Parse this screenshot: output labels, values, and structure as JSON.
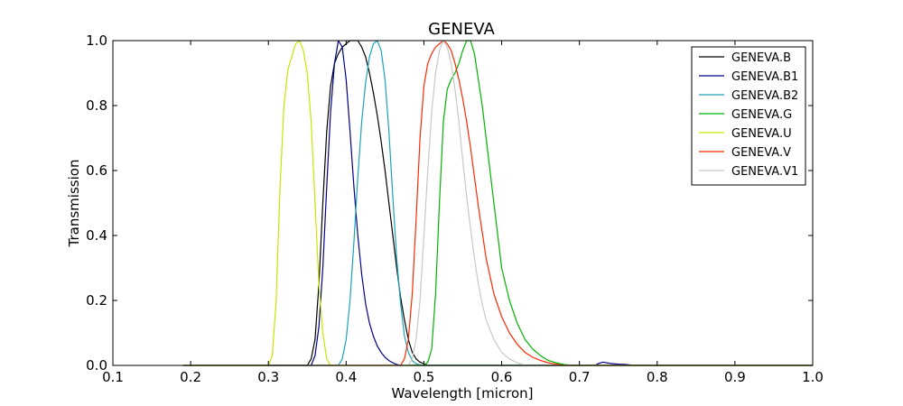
{
  "chart_data": {
    "type": "line",
    "title": "GENEVA",
    "xlabel": "Wavelength [micron]",
    "ylabel": "Transmission",
    "xlim": [
      0.1,
      1.0
    ],
    "ylim": [
      0.0,
      1.0
    ],
    "xticks": [
      0.1,
      0.2,
      0.3,
      0.4,
      0.5,
      0.6,
      0.7,
      0.8,
      0.9,
      1.0
    ],
    "xtick_labels": [
      "0.1",
      "0.2",
      "0.3",
      "0.4",
      "0.5",
      "0.6",
      "0.7",
      "0.8",
      "0.9",
      "1.0"
    ],
    "yticks": [
      0.0,
      0.2,
      0.4,
      0.6,
      0.8,
      1.0
    ],
    "ytick_labels": [
      "0.0",
      "0.2",
      "0.4",
      "0.6",
      "0.8",
      "1.0"
    ],
    "grid": false,
    "legend_position": "top-right",
    "series": [
      {
        "name": "GENEVA.B",
        "color": "#000000",
        "x": [
          0.19,
          0.35,
          0.355,
          0.36,
          0.365,
          0.37,
          0.375,
          0.38,
          0.385,
          0.39,
          0.395,
          0.4,
          0.405,
          0.41,
          0.415,
          0.42,
          0.425,
          0.43,
          0.435,
          0.44,
          0.445,
          0.45,
          0.455,
          0.46,
          0.465,
          0.47,
          0.475,
          0.48,
          0.485,
          0.49,
          0.495,
          0.5,
          0.505,
          0.51,
          1.0
        ],
        "y": [
          0,
          0,
          0.02,
          0.08,
          0.25,
          0.5,
          0.72,
          0.86,
          0.93,
          0.96,
          0.98,
          0.99,
          1.0,
          1.0,
          1.0,
          0.98,
          0.95,
          0.9,
          0.84,
          0.77,
          0.69,
          0.6,
          0.5,
          0.4,
          0.3,
          0.21,
          0.14,
          0.08,
          0.04,
          0.02,
          0.01,
          0.005,
          0,
          0,
          0
        ]
      },
      {
        "name": "GENEVA.B1",
        "color": "#00008b",
        "x": [
          0.19,
          0.355,
          0.36,
          0.365,
          0.37,
          0.375,
          0.38,
          0.385,
          0.39,
          0.395,
          0.4,
          0.405,
          0.41,
          0.415,
          0.42,
          0.425,
          0.43,
          0.435,
          0.44,
          0.445,
          0.45,
          0.455,
          0.46,
          0.465,
          0.47,
          0.72,
          0.725,
          0.73,
          0.74,
          0.75,
          0.76,
          0.77,
          1.0
        ],
        "y": [
          0,
          0,
          0.03,
          0.12,
          0.3,
          0.55,
          0.78,
          0.93,
          1.0,
          0.98,
          0.88,
          0.72,
          0.55,
          0.4,
          0.28,
          0.19,
          0.13,
          0.09,
          0.06,
          0.04,
          0.025,
          0.015,
          0.008,
          0.003,
          0,
          0,
          0.006,
          0.01,
          0.006,
          0.004,
          0.003,
          0,
          0
        ]
      },
      {
        "name": "GENEVA.B2",
        "color": "#1aa3b8",
        "x": [
          0.19,
          0.39,
          0.395,
          0.4,
          0.405,
          0.41,
          0.415,
          0.42,
          0.425,
          0.43,
          0.435,
          0.44,
          0.445,
          0.45,
          0.455,
          0.46,
          0.465,
          0.47,
          0.475,
          0.48,
          0.485,
          0.49,
          0.495,
          0.5,
          0.505,
          1.0
        ],
        "y": [
          0,
          0,
          0.02,
          0.08,
          0.2,
          0.38,
          0.58,
          0.75,
          0.87,
          0.95,
          0.99,
          1.0,
          0.97,
          0.88,
          0.72,
          0.52,
          0.33,
          0.19,
          0.09,
          0.04,
          0.015,
          0.005,
          0.002,
          0,
          0,
          0
        ]
      },
      {
        "name": "GENEVA.G",
        "color": "#00b400",
        "x": [
          0.19,
          0.5,
          0.505,
          0.51,
          0.515,
          0.52,
          0.525,
          0.53,
          0.535,
          0.54,
          0.545,
          0.55,
          0.555,
          0.56,
          0.565,
          0.57,
          0.575,
          0.58,
          0.585,
          0.59,
          0.595,
          0.6,
          0.61,
          0.62,
          0.63,
          0.64,
          0.65,
          0.66,
          0.67,
          0.68,
          0.69,
          1.0
        ],
        "y": [
          0,
          0,
          0.01,
          0.05,
          0.22,
          0.5,
          0.75,
          0.85,
          0.88,
          0.9,
          0.93,
          0.97,
          1.0,
          1.0,
          0.96,
          0.88,
          0.8,
          0.7,
          0.6,
          0.5,
          0.4,
          0.3,
          0.2,
          0.13,
          0.08,
          0.05,
          0.03,
          0.015,
          0.008,
          0.003,
          0,
          0
        ]
      },
      {
        "name": "GENEVA.U",
        "color": "#c8e600",
        "x": [
          0.19,
          0.3,
          0.305,
          0.31,
          0.315,
          0.32,
          0.325,
          0.33,
          0.335,
          0.34,
          0.345,
          0.35,
          0.355,
          0.36,
          0.365,
          0.37,
          0.375,
          0.38,
          1.0
        ],
        "y": [
          0,
          0,
          0.03,
          0.2,
          0.55,
          0.8,
          0.91,
          0.95,
          0.99,
          1.0,
          0.97,
          0.9,
          0.75,
          0.5,
          0.25,
          0.1,
          0.02,
          0,
          0
        ]
      },
      {
        "name": "GENEVA.V",
        "color": "#ff2800",
        "x": [
          0.19,
          0.47,
          0.475,
          0.48,
          0.485,
          0.49,
          0.495,
          0.5,
          0.505,
          0.51,
          0.515,
          0.52,
          0.525,
          0.53,
          0.535,
          0.54,
          0.545,
          0.55,
          0.555,
          0.56,
          0.565,
          0.57,
          0.575,
          0.58,
          0.59,
          0.6,
          0.61,
          0.62,
          0.63,
          0.64,
          0.65,
          0.66,
          0.67,
          0.68,
          1.0
        ],
        "y": [
          0,
          0,
          0.02,
          0.08,
          0.22,
          0.45,
          0.7,
          0.86,
          0.93,
          0.96,
          0.98,
          0.99,
          1.0,
          0.99,
          0.97,
          0.93,
          0.88,
          0.82,
          0.75,
          0.67,
          0.58,
          0.49,
          0.41,
          0.33,
          0.22,
          0.15,
          0.1,
          0.065,
          0.04,
          0.025,
          0.015,
          0.008,
          0.004,
          0,
          0
        ]
      },
      {
        "name": "GENEVA.V1",
        "color": "#c8c8c8",
        "x": [
          0.19,
          0.48,
          0.485,
          0.49,
          0.495,
          0.5,
          0.505,
          0.51,
          0.515,
          0.52,
          0.525,
          0.53,
          0.535,
          0.54,
          0.545,
          0.55,
          0.555,
          0.56,
          0.565,
          0.57,
          0.575,
          0.58,
          0.59,
          0.6,
          0.61,
          0.62,
          0.63,
          1.0
        ],
        "y": [
          0,
          0,
          0.02,
          0.08,
          0.2,
          0.4,
          0.6,
          0.78,
          0.9,
          0.97,
          1.0,
          0.98,
          0.93,
          0.85,
          0.75,
          0.63,
          0.52,
          0.42,
          0.33,
          0.25,
          0.19,
          0.14,
          0.08,
          0.04,
          0.02,
          0.008,
          0,
          0
        ]
      }
    ]
  }
}
